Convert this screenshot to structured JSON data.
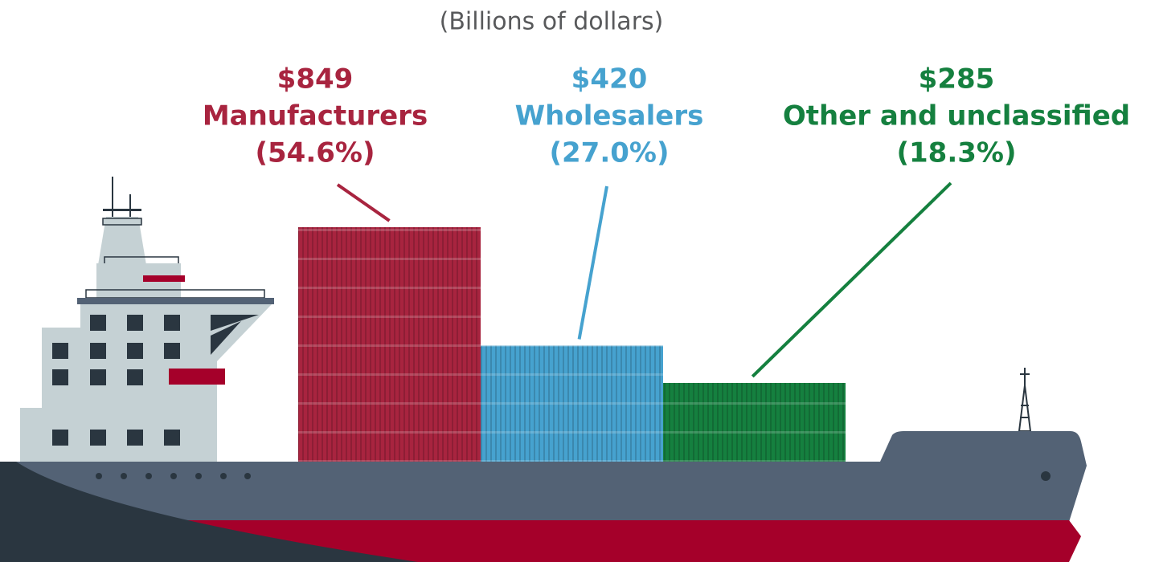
{
  "chart_data": {
    "type": "bar",
    "subtitle": "(Billions of dollars)",
    "categories": [
      "Manufacturers",
      "Wholesalers",
      "Other and unclassified"
    ],
    "values": [
      849,
      420,
      285
    ],
    "value_labels": [
      "$849",
      "$420",
      "$285"
    ],
    "percent_labels": [
      "(54.6%)",
      "(27.0%)",
      "(18.3%)"
    ],
    "colors": [
      "#a8243f",
      "#46a2cf",
      "#15803f"
    ]
  }
}
